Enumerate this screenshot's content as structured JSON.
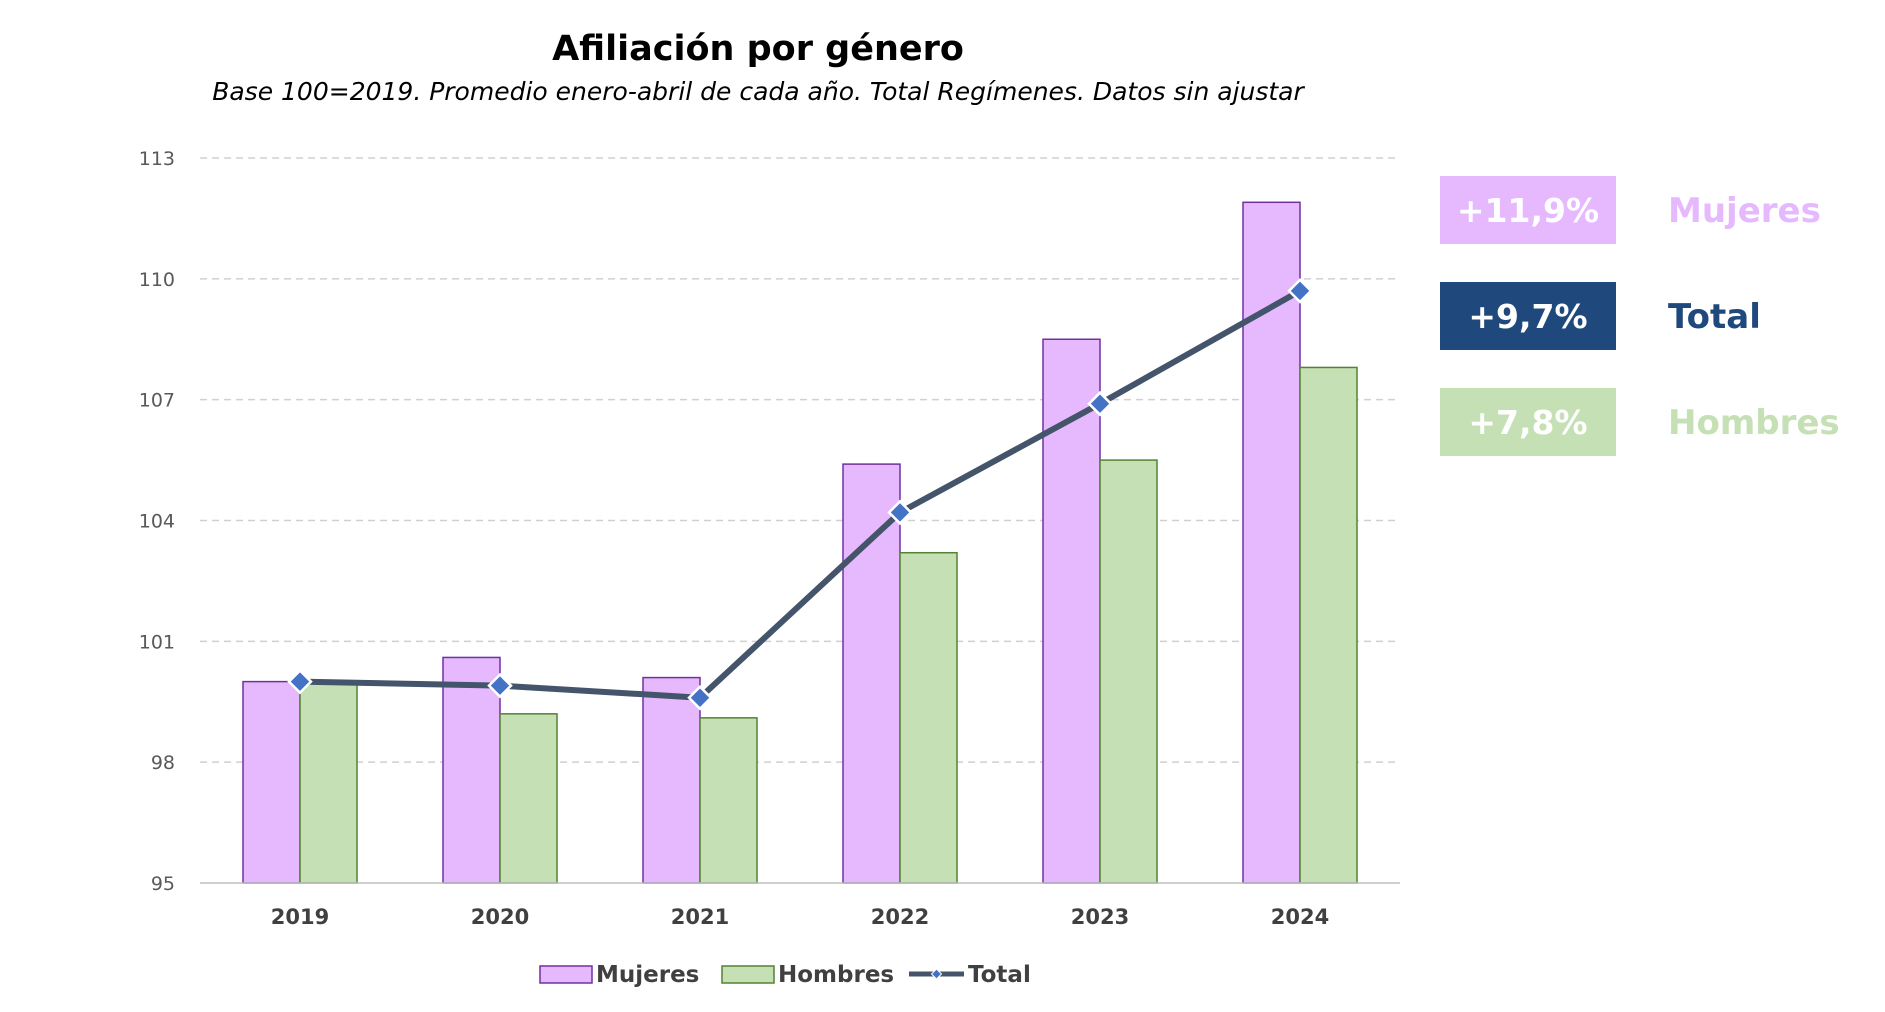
{
  "chart_data": {
    "type": "bar",
    "title": "Afiliación por género",
    "subtitle": "Base 100=2019. Promedio enero-abril de cada año. Total Regímenes. Datos sin ajustar",
    "categories": [
      "2019",
      "2020",
      "2021",
      "2022",
      "2023",
      "2024"
    ],
    "ylim": [
      95,
      113
    ],
    "yticks": [
      "95",
      "98",
      "101",
      "104",
      "107",
      "110",
      "113"
    ],
    "grid": true,
    "legend_position": "bottom",
    "series": [
      {
        "name": "Mujeres",
        "kind": "bar",
        "color": "#E6B9FF",
        "edge": "#7030A0",
        "values": [
          100.0,
          100.6,
          100.1,
          105.4,
          108.5,
          111.9
        ]
      },
      {
        "name": "Hombres",
        "kind": "bar",
        "color": "#C5E0B4",
        "edge": "#548235",
        "values": [
          100.0,
          99.2,
          99.1,
          103.2,
          105.5,
          107.8
        ]
      },
      {
        "name": "Total",
        "kind": "line",
        "color": "#44546A",
        "marker_color": "#4472C4",
        "values": [
          100.0,
          99.9,
          99.6,
          104.2,
          106.9,
          109.7
        ]
      }
    ]
  },
  "summary_cards": [
    {
      "value": "+11,9%",
      "label": "Mujeres",
      "box_color": "#E6B9FF",
      "label_color": "#E6B9FF"
    },
    {
      "value": "+9,7%",
      "label": "Total",
      "box_color": "#1F497D",
      "label_color": "#1F497D"
    },
    {
      "value": "+7,8%",
      "label": "Hombres",
      "box_color": "#C5E0B4",
      "label_color": "#C5E0B4"
    }
  ]
}
